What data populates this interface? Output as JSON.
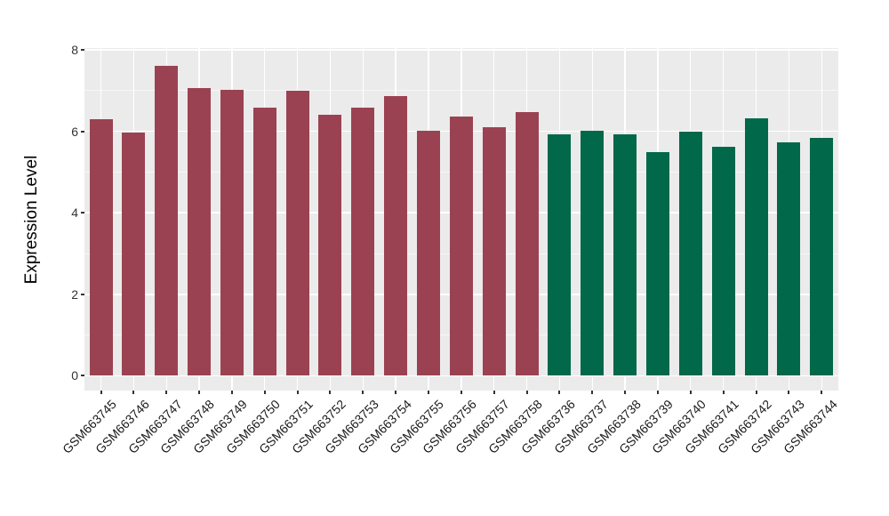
{
  "figure": {
    "background_color": "#FFFFFF",
    "panel_background_color": "#EBEBEB",
    "gridline_color": "#FFFFFF",
    "tick_text_color": "#333333",
    "axis_title_color": "#000000"
  },
  "chart_data": {
    "type": "bar",
    "title": "",
    "xlabel": "",
    "ylabel": "Expression Level",
    "ylim": [
      0,
      8
    ],
    "yticks": [
      0,
      2,
      4,
      6,
      8
    ],
    "yticks_minor": [
      1,
      3,
      5,
      7
    ],
    "grid": "on (white major and minor gridlines on gray panel, ggplot style)",
    "legend": "none",
    "x_tick_rotation_deg": 45,
    "categories": [
      "GSM663745",
      "GSM663746",
      "GSM663747",
      "GSM663748",
      "GSM663749",
      "GSM663750",
      "GSM663751",
      "GSM663752",
      "GSM663753",
      "GSM663754",
      "GSM663755",
      "GSM663756",
      "GSM663757",
      "GSM663758",
      "GSM663736",
      "GSM663737",
      "GSM663738",
      "GSM663739",
      "GSM663740",
      "GSM663741",
      "GSM663742",
      "GSM663743",
      "GSM663744"
    ],
    "values": [
      6.3,
      5.97,
      7.61,
      7.07,
      7.02,
      6.59,
      7.0,
      6.41,
      6.58,
      6.87,
      6.01,
      6.36,
      6.1,
      6.47,
      5.93,
      6.01,
      5.93,
      5.49,
      5.99,
      5.61,
      6.32,
      5.73,
      5.84
    ],
    "bar_groups": [
      "group1",
      "group1",
      "group1",
      "group1",
      "group1",
      "group1",
      "group1",
      "group1",
      "group1",
      "group1",
      "group1",
      "group1",
      "group1",
      "group1",
      "group2",
      "group2",
      "group2",
      "group2",
      "group2",
      "group2",
      "group2",
      "group2",
      "group2"
    ],
    "group_colors": {
      "group1": "#9B4252",
      "group2": "#016849"
    }
  }
}
